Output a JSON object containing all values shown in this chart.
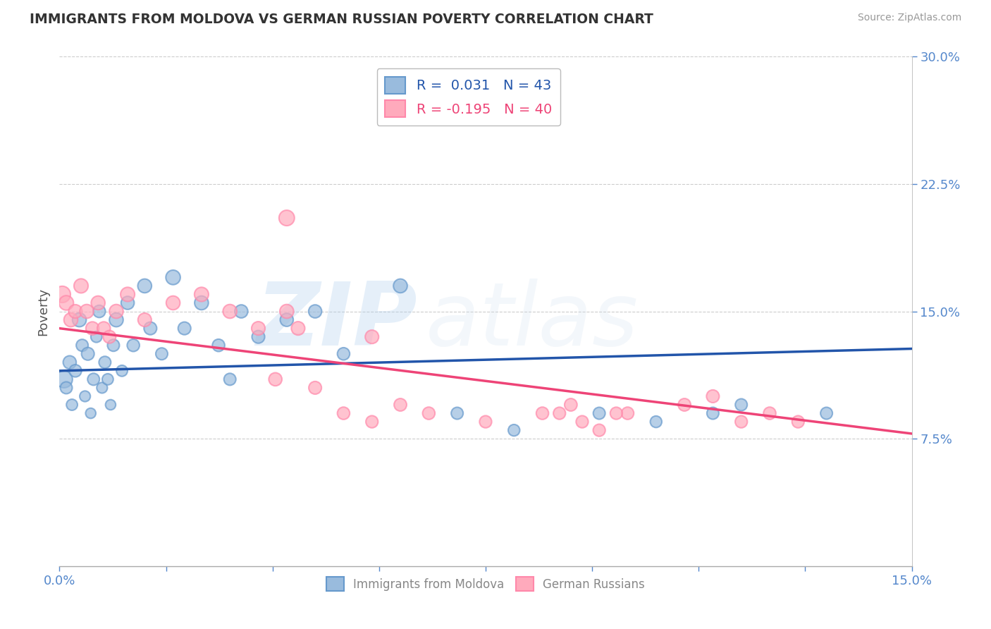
{
  "title": "IMMIGRANTS FROM MOLDOVA VS GERMAN RUSSIAN POVERTY CORRELATION CHART",
  "source": "Source: ZipAtlas.com",
  "ylabel": "Poverty",
  "xlim": [
    0.0,
    15.0
  ],
  "ylim": [
    0.0,
    30.0
  ],
  "yticks": [
    7.5,
    15.0,
    22.5,
    30.0
  ],
  "xticks": [
    0.0,
    1.875,
    3.75,
    5.625,
    7.5,
    9.375,
    11.25,
    13.125,
    15.0
  ],
  "blue_color": "#99BBDD",
  "pink_color": "#FFAABC",
  "blue_edge_color": "#6699CC",
  "pink_edge_color": "#FF88AA",
  "blue_line_color": "#2255AA",
  "pink_line_color": "#EE4477",
  "legend_r_blue": "R =  0.031",
  "legend_n_blue": "N = 43",
  "legend_r_pink": "R = -0.195",
  "legend_n_pink": "N = 40",
  "watermark_zip": "ZIP",
  "watermark_atlas": "atlas",
  "blue_scatter_x": [
    0.08,
    0.12,
    0.18,
    0.22,
    0.28,
    0.35,
    0.4,
    0.45,
    0.5,
    0.55,
    0.6,
    0.65,
    0.7,
    0.75,
    0.8,
    0.85,
    0.9,
    0.95,
    1.0,
    1.1,
    1.2,
    1.3,
    1.5,
    1.6,
    1.8,
    2.0,
    2.2,
    2.5,
    2.8,
    3.0,
    3.2,
    3.5,
    4.0,
    4.5,
    5.0,
    6.0,
    7.0,
    8.0,
    9.5,
    10.5,
    11.5,
    12.0,
    13.5
  ],
  "blue_scatter_y": [
    11.0,
    10.5,
    12.0,
    9.5,
    11.5,
    14.5,
    13.0,
    10.0,
    12.5,
    9.0,
    11.0,
    13.5,
    15.0,
    10.5,
    12.0,
    11.0,
    9.5,
    13.0,
    14.5,
    11.5,
    15.5,
    13.0,
    16.5,
    14.0,
    12.5,
    17.0,
    14.0,
    15.5,
    13.0,
    11.0,
    15.0,
    13.5,
    14.5,
    15.0,
    12.5,
    16.5,
    9.0,
    8.0,
    9.0,
    8.5,
    9.0,
    9.5,
    9.0
  ],
  "blue_scatter_sizes": [
    300,
    150,
    180,
    130,
    160,
    200,
    150,
    120,
    170,
    110,
    150,
    130,
    160,
    120,
    150,
    130,
    110,
    150,
    200,
    130,
    180,
    160,
    200,
    170,
    150,
    220,
    170,
    200,
    160,
    150,
    180,
    170,
    180,
    180,
    160,
    200,
    150,
    140,
    150,
    140,
    150,
    150,
    150
  ],
  "pink_scatter_x": [
    0.05,
    0.12,
    0.2,
    0.28,
    0.38,
    0.48,
    0.58,
    0.68,
    0.78,
    0.88,
    1.0,
    1.2,
    1.5,
    2.0,
    2.5,
    3.0,
    3.5,
    4.0,
    4.5,
    5.0,
    5.5,
    6.0,
    6.5,
    7.5,
    8.5,
    9.0,
    9.5,
    10.0,
    11.0,
    11.5,
    12.0,
    12.5,
    13.0,
    4.0,
    5.5,
    3.8,
    4.2,
    8.8,
    9.2,
    9.8
  ],
  "pink_scatter_y": [
    16.0,
    15.5,
    14.5,
    15.0,
    16.5,
    15.0,
    14.0,
    15.5,
    14.0,
    13.5,
    15.0,
    16.0,
    14.5,
    15.5,
    16.0,
    15.0,
    14.0,
    15.0,
    10.5,
    9.0,
    8.5,
    9.5,
    9.0,
    8.5,
    9.0,
    9.5,
    8.0,
    9.0,
    9.5,
    10.0,
    8.5,
    9.0,
    8.5,
    20.5,
    13.5,
    11.0,
    14.0,
    9.0,
    8.5,
    9.0
  ],
  "pink_scatter_sizes": [
    280,
    220,
    200,
    190,
    210,
    200,
    180,
    200,
    180,
    170,
    200,
    210,
    190,
    200,
    210,
    200,
    190,
    200,
    170,
    160,
    155,
    165,
    160,
    155,
    160,
    165,
    155,
    160,
    165,
    170,
    155,
    160,
    155,
    250,
    190,
    180,
    190,
    155,
    155,
    155
  ],
  "blue_line_x": [
    0.0,
    15.0
  ],
  "blue_line_y_start": 11.5,
  "blue_line_y_end": 12.8,
  "pink_line_x": [
    0.0,
    15.0
  ],
  "pink_line_y_start": 14.0,
  "pink_line_y_end": 7.8,
  "grid_color": "#CCCCCC",
  "background_color": "#FFFFFF",
  "title_color": "#333333",
  "tick_color": "#5588CC"
}
